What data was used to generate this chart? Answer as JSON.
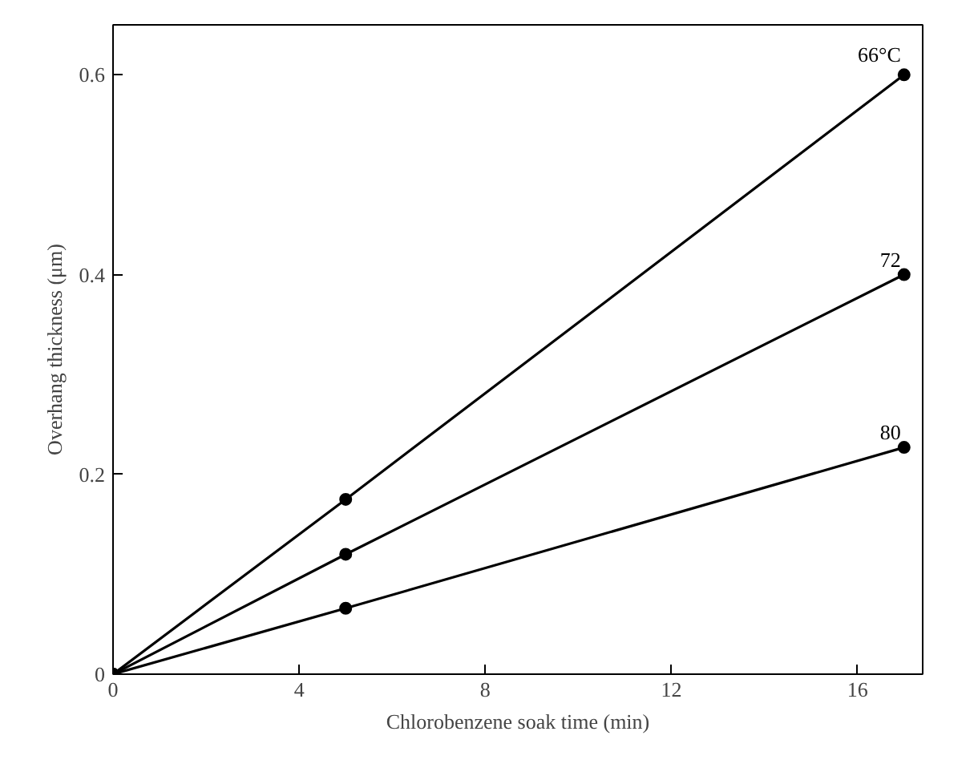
{
  "chart_data": {
    "type": "line",
    "xlabel": "Chlorobenzene soak time (min)",
    "ylabel": "Overhang thickness (μm)",
    "xlim": [
      0,
      17.4
    ],
    "ylim": [
      0,
      0.65
    ],
    "xticks": [
      0,
      4,
      8,
      12,
      16
    ],
    "yticks": [
      0,
      0.2,
      0.4,
      0.6
    ],
    "grid": false,
    "marker": "circle",
    "line_style": "solid",
    "series": [
      {
        "name": "66°C",
        "color": "#000000",
        "x": [
          0,
          5,
          17
        ],
        "values": [
          0,
          0.175,
          0.6
        ]
      },
      {
        "name": "72",
        "color": "#000000",
        "x": [
          0,
          5,
          17
        ],
        "values": [
          0,
          0.12,
          0.4
        ]
      },
      {
        "name": "80",
        "color": "#000000",
        "x": [
          0,
          5,
          17
        ],
        "values": [
          0,
          0.066,
          0.227
        ]
      }
    ]
  }
}
